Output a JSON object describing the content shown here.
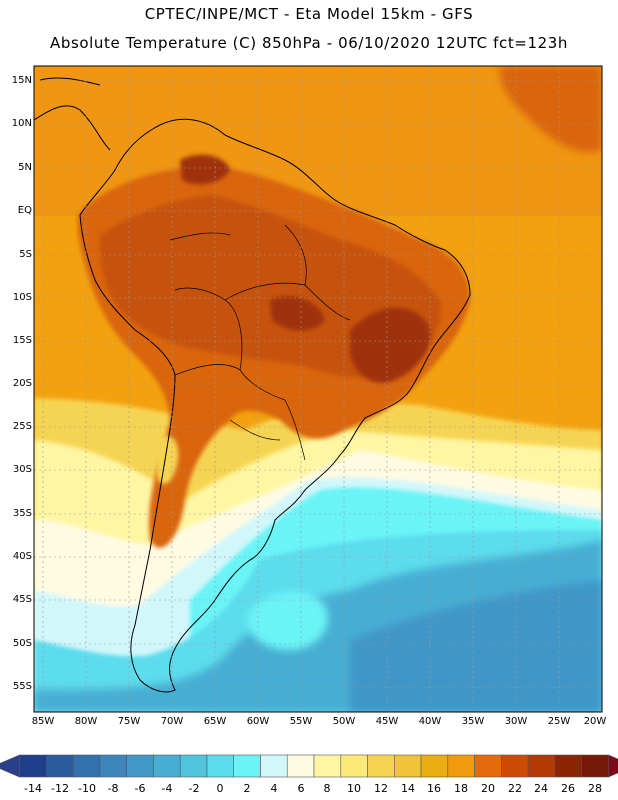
{
  "header": {
    "line1": "CPTEC/INPE/MCT -  Eta Model 15km - GFS",
    "line2": "Absolute Temperature (C) 850hPa - 06/10/2020 12UTC fct=123h"
  },
  "axes": {
    "lat_labels": [
      "15N",
      "10N",
      "5N",
      "EQ",
      "5S",
      "10S",
      "15S",
      "20S",
      "25S",
      "30S",
      "35S",
      "40S",
      "45S",
      "50S",
      "55S"
    ],
    "lat_values": [
      15,
      10,
      5,
      0,
      -5,
      -10,
      -15,
      -20,
      -25,
      -30,
      -35,
      -40,
      -45,
      -50,
      -55
    ],
    "lon_labels": [
      "85W",
      "80W",
      "75W",
      "70W",
      "65W",
      "60W",
      "55W",
      "50W",
      "45W",
      "40W",
      "35W",
      "30W",
      "25W",
      "20W"
    ],
    "lon_values": [
      -85,
      -80,
      -75,
      -70,
      -65,
      -60,
      -55,
      -50,
      -45,
      -40,
      -35,
      -30,
      -25,
      -20
    ],
    "lat_range": [
      -58,
      17
    ],
    "lon_range": [
      -86,
      -20
    ]
  },
  "colorbar": {
    "labels": [
      "-14",
      "-12",
      "-10",
      "-8",
      "-6",
      "-4",
      "-2",
      "0",
      "2",
      "4",
      "6",
      "8",
      "10",
      "12",
      "14",
      "16",
      "18",
      "20",
      "22",
      "24",
      "26",
      "28"
    ],
    "colors": [
      "#1e3f8c",
      "#2a5b9e",
      "#3271ad",
      "#3d86bd",
      "#4197c7",
      "#47aed3",
      "#52c5de",
      "#5cdcec",
      "#6bf4f7",
      "#d2f7fb",
      "#fffbe3",
      "#fff6a3",
      "#fde977",
      "#f6d452",
      "#f0c33a",
      "#ecad12",
      "#f19a0e",
      "#e46a0b",
      "#cd4b06",
      "#b33a07",
      "#8e2406",
      "#751908"
    ],
    "under_color": "#2a3f8a",
    "over_color": "#7d0a1a"
  },
  "map": {
    "colors": {
      "ocean_warm": "#f3a10f",
      "ocean_north": "#f09612",
      "land_hot": "#d9650c",
      "land_hotter": "#c65208",
      "land_hottest": "#9f3207",
      "cool_yellow": "#f6d452",
      "pale_yellow": "#fff6a3",
      "cream": "#fffbe3",
      "pale_cyan": "#d2f7fb",
      "cyan": "#6bf4f7",
      "mid_cyan": "#5cdcec",
      "ocean_blue": "#47aed3",
      "deep_blue": "#4197c7"
    },
    "region": "South America"
  }
}
